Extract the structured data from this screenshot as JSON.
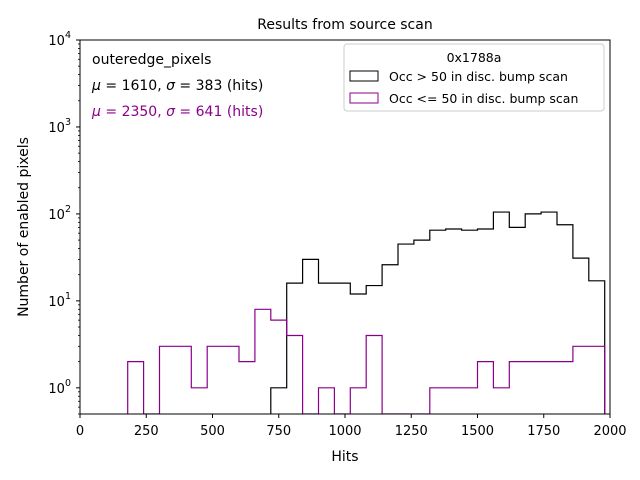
{
  "chart_data": {
    "type": "histogram",
    "title": "Results from source scan",
    "xlabel": "Hits",
    "ylabel": "Number of enabled pixels",
    "xlim": [
      0,
      2000
    ],
    "ylim": [
      0.5,
      10000
    ],
    "yscale": "log",
    "grid": false,
    "legend_placement": "top-right",
    "legend_title": "0x1788a",
    "x_ticks": [
      0,
      250,
      500,
      750,
      1000,
      1250,
      1500,
      1750,
      2000
    ],
    "x_tick_labels": [
      "0",
      "250",
      "500",
      "750",
      "1000",
      "1250",
      "1500",
      "1750",
      "2000"
    ],
    "y_ticks": [
      1,
      10,
      100,
      1000,
      10000
    ],
    "y_tick_labels": [
      {
        "base": "10",
        "exp": "0"
      },
      {
        "base": "10",
        "exp": "1"
      },
      {
        "base": "10",
        "exp": "2"
      },
      {
        "base": "10",
        "exp": "3"
      },
      {
        "base": "10",
        "exp": "4"
      }
    ],
    "bin_width": 60,
    "annotations": {
      "label": "outeredge_pixels",
      "stats_black": {
        "mu": "1610",
        "sigma": "383",
        "unit": "(hits)"
      },
      "stats_purple": {
        "mu": "2350",
        "sigma": "641",
        "unit": "(hits)"
      }
    },
    "series": [
      {
        "name": "Occ > 50 in disc. bump scan",
        "color": "#000000",
        "bin_edges": [
          720,
          780,
          840,
          900,
          960,
          1020,
          1080,
          1140,
          1200,
          1260,
          1320,
          1380,
          1440,
          1500,
          1560,
          1620,
          1680,
          1740,
          1800,
          1860,
          1920,
          1980
        ],
        "counts": [
          1,
          16,
          30,
          16,
          16,
          12,
          15,
          26,
          45,
          50,
          65,
          67,
          65,
          67,
          105,
          70,
          100,
          105,
          75,
          31,
          17
        ]
      },
      {
        "name": "Occ <= 50 in disc. bump scan",
        "color": "#8b008b",
        "bin_edges": [
          180,
          240,
          300,
          360,
          420,
          480,
          540,
          600,
          660,
          720,
          780,
          840,
          900,
          960,
          1020,
          1080,
          1140,
          1200,
          1260,
          1320,
          1380,
          1440,
          1500,
          1560,
          1620,
          1680,
          1740,
          1800,
          1860,
          1920,
          1980
        ],
        "counts": [
          2,
          0,
          3,
          3,
          1,
          3,
          3,
          2,
          8,
          6,
          4,
          0,
          1,
          0,
          1,
          4,
          0,
          0,
          0,
          1,
          1,
          1,
          2,
          1,
          2,
          2,
          2,
          2,
          3,
          3
        ]
      }
    ]
  }
}
